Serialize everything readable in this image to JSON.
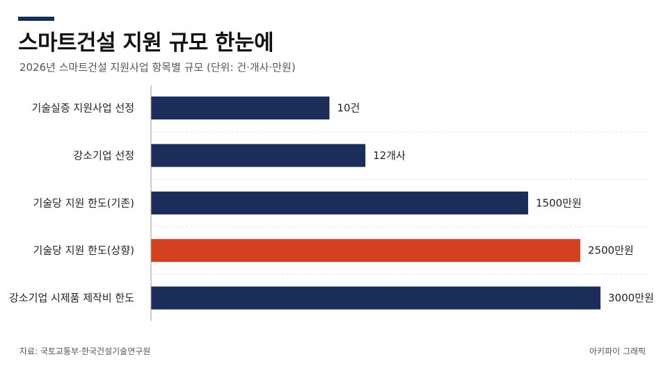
{
  "header": {
    "title": "스마트건설 지원 규모 한눈에",
    "subtitle": "2026년 스마트건설 지원사업 항목별 규모 (단위: 건·개사·만원)",
    "accent_color": "#1b2e5a"
  },
  "chart_data": {
    "type": "bar",
    "orientation": "horizontal",
    "title": "스마트건설 지원 규모 한눈에",
    "subtitle": "2026년 스마트건설 지원사업 항목별 규모 (단위: 건·개사·만원)",
    "categories": [
      "기술실증 지원사업 선정",
      "강소기업 선정",
      "기술당 지원 한도(기존)",
      "기술당 지원 한도(상향)",
      "강소기업 시제품 제작비 한도"
    ],
    "series": [
      {
        "values": [
          10,
          12,
          1500,
          2500,
          3000
        ],
        "value_labels": [
          "10건",
          "12개사",
          "1500만원",
          "2500만원",
          "3000만원"
        ],
        "bar_fraction": [
          0.397,
          0.477,
          0.839,
          0.955,
          1.0
        ],
        "colors": [
          "#1b2e5a",
          "#1b2e5a",
          "#1b2e5a",
          "#d2401f",
          "#1b2e5a"
        ]
      }
    ],
    "highlight_index": 3,
    "grid": true,
    "legend": "none",
    "xlabel": "",
    "ylabel": ""
  },
  "footer": {
    "source": "자료: 국토교통부·한국건설기술연구원",
    "credit": "아키파이 그래픽"
  }
}
